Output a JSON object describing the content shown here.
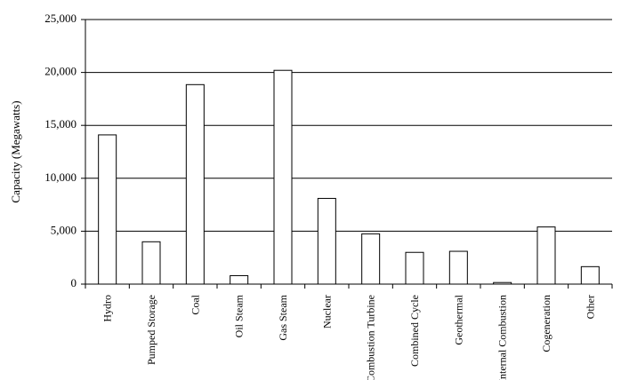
{
  "chart_data": {
    "type": "bar",
    "y_label": "Capacity (Megawatts)",
    "categories": [
      "Hydro",
      "Pumped Storage",
      "Coal",
      "Oil Steam",
      "Gas Steam",
      "Nuclear",
      "Combustion Turbine",
      "Combined Cycle",
      "Geothermal",
      "Internal Combustion",
      "Cogeneration",
      "Other"
    ],
    "values": [
      14100,
      4000,
      18850,
      800,
      20200,
      8100,
      4750,
      3000,
      3100,
      150,
      5400,
      1650
    ],
    "color": "#ffffff",
    "ylim": [
      0,
      25000
    ],
    "yticks": [
      0,
      {
        "value": 5000,
        "label": "5,000"
      },
      {
        "value": 10000,
        "label": "10,000"
      },
      {
        "value": 15000,
        "label": "15,000"
      },
      {
        "value": 20000,
        "label": "20,000"
      },
      {
        "value": 25000,
        "label": "25,000"
      }
    ],
    "grid": true
  }
}
